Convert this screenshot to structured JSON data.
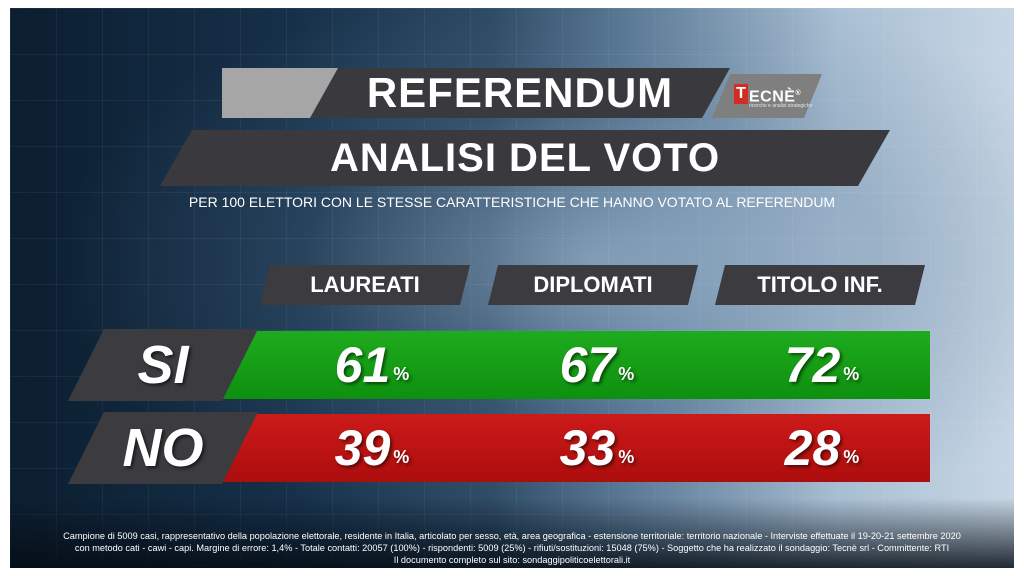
{
  "header": {
    "title": "REFERENDUM",
    "subtitle_banner": "ANALISI DEL VOTO",
    "logo": {
      "initial": "T",
      "rest": "ECNÈ",
      "registered": "®",
      "tagline": "ricerche e analisi strategiche"
    },
    "description": "PER 100 ELETTORI CON LE STESSE CARATTERISTICHE CHE HANNO VOTATO AL REFERENDUM"
  },
  "chart_data": {
    "type": "table",
    "title": "REFERENDUM",
    "subtitle": "ANALISI DEL VOTO",
    "categories": [
      "LAUREATI",
      "DIPLOMATI",
      "TITOLO INF."
    ],
    "unit": "%",
    "series": [
      {
        "name": "SI",
        "values": [
          61,
          67,
          72
        ],
        "color": "#12a012"
      },
      {
        "name": "NO",
        "values": [
          39,
          33,
          28
        ],
        "color": "#c11414"
      }
    ]
  },
  "footnote": [
    "Campione di 5009 casi, rappresentativo della popolazione elettorale, residente in Italia, articolato per sesso, età, area geografica - estensione territoriale: territorio nazionale - Interviste effettuate il 19-20-21 settembre 2020",
    "con metodo cati - cawi - capi. Margine di errore: 1,4% - Totale contatti: 20057 (100%) - rispondenti: 5009 (25%) - rifiuti/sostituzioni: 15048 (75%) - Soggetto che ha realizzato il sondaggio: Tecnè srl - Committente: RTI",
    "Il documento completo sul sito: sondaggipoliticoelettorali.it"
  ],
  "colors": {
    "banner": "#3a3a3e",
    "yes": "#12a012",
    "no": "#c11414"
  }
}
